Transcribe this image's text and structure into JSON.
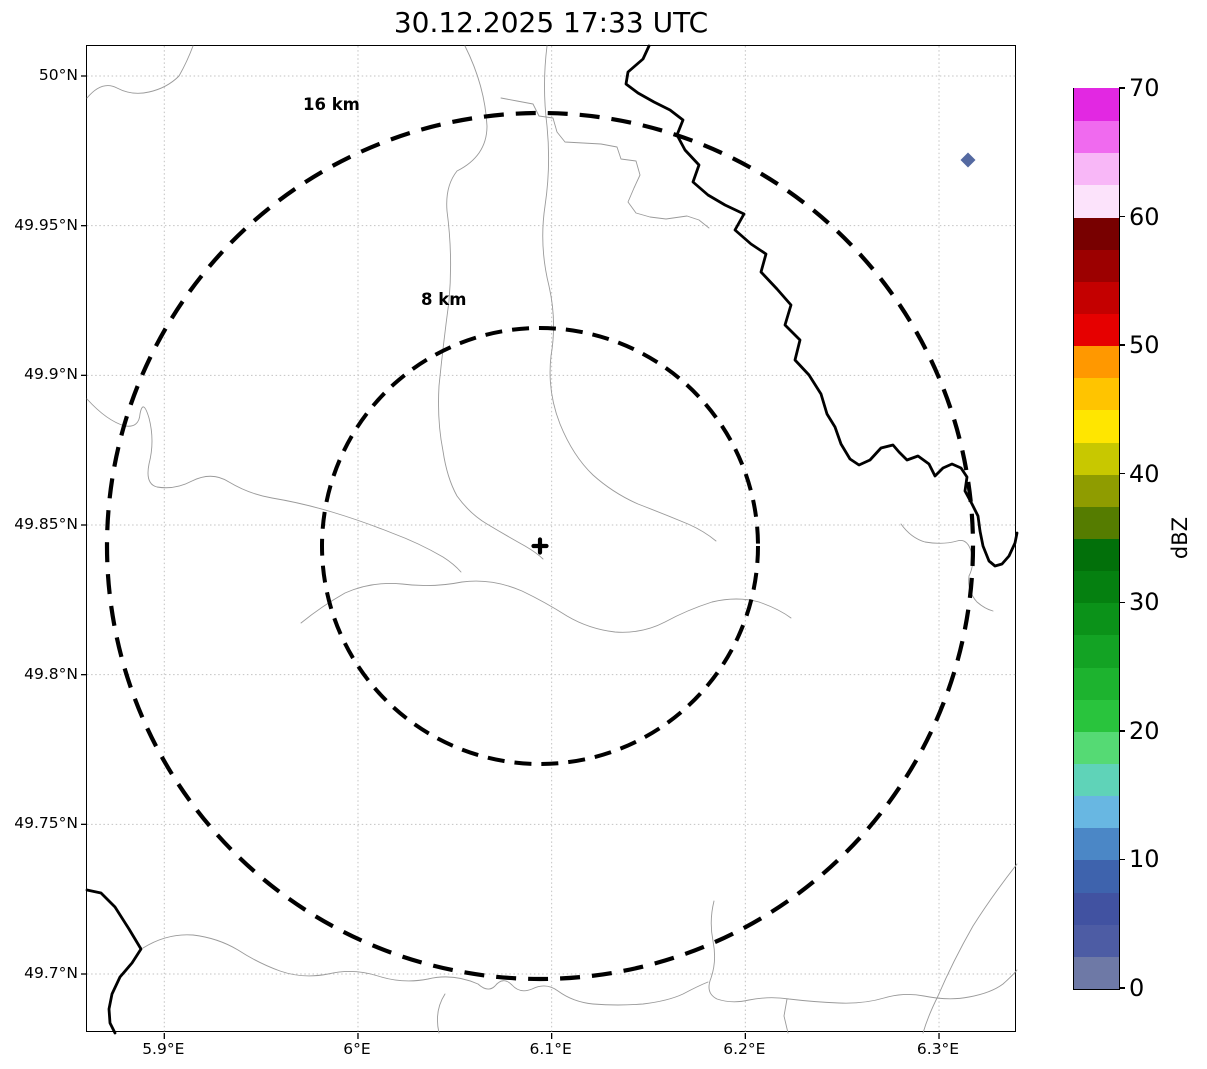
{
  "title": "30.12.2025 17:33 UTC",
  "map": {
    "range_rings": [
      {
        "label": "16 km",
        "radius_km": 16
      },
      {
        "label": "8 km",
        "radius_km": 8
      }
    ],
    "radar_site": {
      "marker": "+",
      "lon": "6.09°E",
      "lat": "49.84°N"
    },
    "echo_cells": [
      {
        "shape": "diamond",
        "color": "#5469a1",
        "lon": "6.31°E",
        "lat": "49.97°N",
        "approx_dbz": "0–5"
      }
    ],
    "x_axis": {
      "tick_labels": [
        "5.9°E",
        "6°E",
        "6.1°E",
        "6.2°E",
        "6.3°E"
      ]
    },
    "y_axis": {
      "tick_labels": [
        "50°N",
        "49.95°N",
        "49.9°N",
        "49.85°N",
        "49.8°N",
        "49.75°N",
        "49.7°N"
      ]
    }
  },
  "colorbar": {
    "label": "dBZ",
    "min": 0,
    "max": 70,
    "tick_values": [
      0,
      10,
      20,
      30,
      40,
      50,
      60,
      70
    ],
    "segment_colors_bottom_to_top": [
      "#6e79a6",
      "#4d5ca4",
      "#4152a1",
      "#3e63ad",
      "#4b87c6",
      "#68b7e2",
      "#5fd3b8",
      "#55da74",
      "#29c43d",
      "#1db32f",
      "#13a324",
      "#0b9219",
      "#058010",
      "#02700a",
      "#557c00",
      "#8f9c00",
      "#c8c800",
      "#ffe600",
      "#ffc400",
      "#ff9800",
      "#e60000",
      "#c40000",
      "#9c0000",
      "#780000",
      "#fce3fb",
      "#f8b7f7",
      "#f06aef",
      "#e228e2"
    ]
  }
}
